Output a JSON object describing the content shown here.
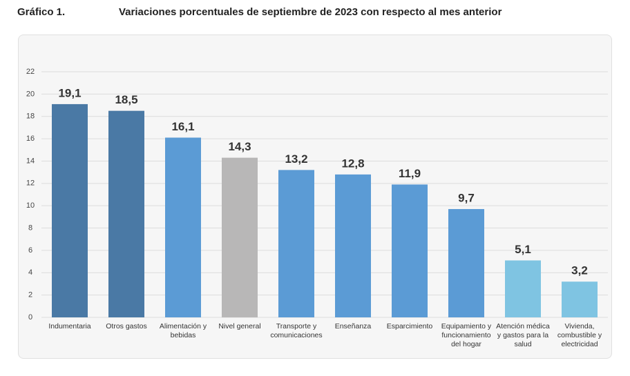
{
  "chart_data": {
    "type": "bar",
    "label": "Gráfico 1.",
    "title": "Variaciones porcentuales de septiembre de 2023 con respecto al mes anterior",
    "categories": [
      "Indumentaria",
      "Otros gastos",
      "Alimentación y bebidas",
      "Nivel general",
      "Transporte y comunicaciones",
      "Enseñanza",
      "Esparcimiento",
      "Equipamiento y funcionamiento del hogar",
      "Atención médica y gastos para la salud",
      "Vivienda, combustible y electricidad"
    ],
    "values": [
      19.1,
      18.5,
      16.1,
      14.3,
      13.2,
      12.8,
      11.9,
      9.7,
      5.1,
      3.2
    ],
    "value_labels": [
      "19,1",
      "18,5",
      "16,1",
      "14,3",
      "13,2",
      "12,8",
      "11,9",
      "9,7",
      "5,1",
      "3,2"
    ],
    "colors": [
      "#4a79a5",
      "#4a79a5",
      "#5b9bd5",
      "#b8b7b7",
      "#5b9bd5",
      "#5b9bd5",
      "#5b9bd5",
      "#5b9bd5",
      "#7fc4e2",
      "#7fc4e2"
    ],
    "ylim": [
      0,
      22
    ],
    "yticks": [
      0,
      2,
      4,
      6,
      8,
      10,
      12,
      14,
      16,
      18,
      20,
      22
    ],
    "grid": true
  }
}
